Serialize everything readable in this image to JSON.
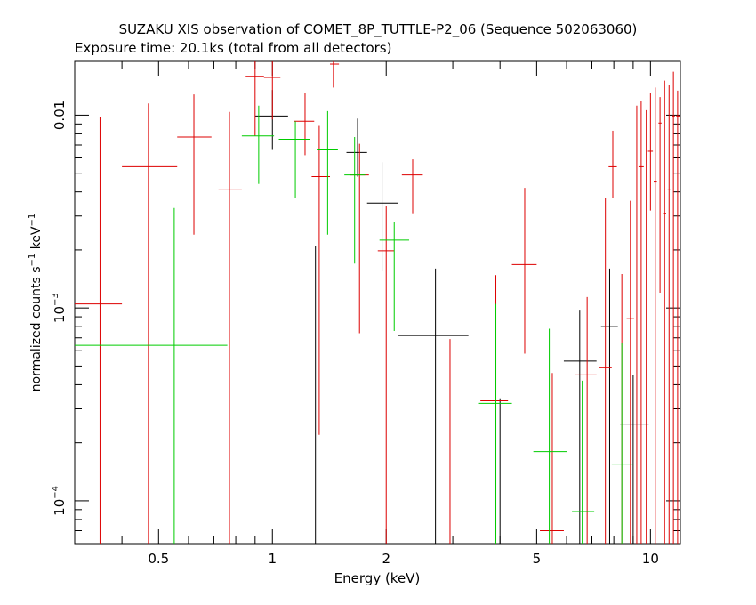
{
  "chart_data": {
    "type": "scatter",
    "title": "SUZAKU XIS observation of COMET_8P_TUTTLE-P2_06 (Sequence 502063060)",
    "subtitle": "Exposure time: 20.1ks (total from all detectors)",
    "xlabel": "Energy (keV)",
    "ylabel_main": "normalized counts s",
    "ylabel_exp1": "−1",
    "ylabel_mid": " keV",
    "ylabel_exp2": "−1",
    "x_scale": "log",
    "y_scale": "log",
    "xlim": [
      0.3,
      12.0
    ],
    "ylim": [
      6e-05,
      0.019
    ],
    "x_tick_labels": [
      {
        "value": 0.5,
        "label": "0.5"
      },
      {
        "value": 1,
        "label": "1"
      },
      {
        "value": 2,
        "label": "2"
      },
      {
        "value": 5,
        "label": "5"
      },
      {
        "value": 10,
        "label": "10"
      }
    ],
    "y_tick_labels": [
      {
        "value": 0.01,
        "base": "0.01",
        "exp": ""
      },
      {
        "value": 0.001,
        "base": "10",
        "exp": "−3"
      },
      {
        "value": 0.0001,
        "base": "10",
        "exp": "−4"
      }
    ],
    "series": [
      {
        "color": "#000000",
        "points": [
          {
            "x": 1.0,
            "xlo": 0.9,
            "xhi": 1.1,
            "y": 0.0099,
            "ylo": 0.0066,
            "yhi": 0.0135
          },
          {
            "x": 1.3,
            "xlo": 1.3,
            "xhi": 1.3,
            "y": 0.0003,
            "ylo": 6e-05,
            "yhi": 0.0021
          },
          {
            "x": 1.68,
            "xlo": 1.57,
            "xhi": 1.78,
            "y": 0.0064,
            "ylo": 0.0048,
            "yhi": 0.0096
          },
          {
            "x": 1.95,
            "xlo": 1.78,
            "xhi": 2.15,
            "y": 0.0035,
            "ylo": 0.00155,
            "yhi": 0.0057
          },
          {
            "x": 2.7,
            "xlo": 2.15,
            "xhi": 3.3,
            "y": 0.00072,
            "ylo": 6e-05,
            "yhi": 0.0016
          },
          {
            "x": 4.0,
            "xlo": 4.0,
            "xhi": 4.0,
            "y": 0.0003,
            "ylo": 6e-05,
            "yhi": 0.00034
          },
          {
            "x": 6.5,
            "xlo": 5.9,
            "xhi": 7.2,
            "y": 0.00053,
            "ylo": 6e-05,
            "yhi": 0.00098
          },
          {
            "x": 7.8,
            "xlo": 7.4,
            "xhi": 8.2,
            "y": 0.0008,
            "ylo": 6e-05,
            "yhi": 0.0016
          },
          {
            "x": 9.0,
            "xlo": 8.3,
            "xhi": 9.9,
            "y": 0.00025,
            "ylo": 6e-05,
            "yhi": 0.00045
          }
        ]
      },
      {
        "color": "#dd0000",
        "points": [
          {
            "x": 0.35,
            "xlo": 0.3,
            "xhi": 0.4,
            "y": 0.00105,
            "ylo": 6e-05,
            "yhi": 0.0098
          },
          {
            "x": 0.47,
            "xlo": 0.4,
            "xhi": 0.56,
            "y": 0.0054,
            "ylo": 6e-05,
            "yhi": 0.0115
          },
          {
            "x": 0.62,
            "xlo": 0.56,
            "xhi": 0.69,
            "y": 0.0077,
            "ylo": 0.0024,
            "yhi": 0.0128
          },
          {
            "x": 0.77,
            "xlo": 0.72,
            "xhi": 0.83,
            "y": 0.0041,
            "ylo": 6e-05,
            "yhi": 0.0104
          },
          {
            "x": 0.9,
            "xlo": 0.85,
            "xhi": 0.95,
            "y": 0.0159,
            "ylo": 0.0078,
            "yhi": 0.019
          },
          {
            "x": 1.0,
            "xlo": 0.95,
            "xhi": 1.05,
            "y": 0.0157,
            "ylo": 0.0095,
            "yhi": 0.019
          },
          {
            "x": 1.22,
            "xlo": 1.14,
            "xhi": 1.29,
            "y": 0.0093,
            "ylo": 0.0062,
            "yhi": 0.013
          },
          {
            "x": 1.33,
            "xlo": 1.27,
            "xhi": 1.42,
            "y": 0.0048,
            "ylo": 0.00022,
            "yhi": 0.0088
          },
          {
            "x": 1.45,
            "xlo": 1.42,
            "xhi": 1.5,
            "y": 0.0184,
            "ylo": 0.0139,
            "yhi": 0.019
          },
          {
            "x": 1.7,
            "xlo": 1.6,
            "xhi": 1.8,
            "y": 0.0049,
            "ylo": 0.00074,
            "yhi": 0.0071
          },
          {
            "x": 2.0,
            "xlo": 1.9,
            "xhi": 2.1,
            "y": 0.00198,
            "ylo": 6e-05,
            "yhi": 0.0034
          },
          {
            "x": 2.35,
            "xlo": 2.2,
            "xhi": 2.5,
            "y": 0.0049,
            "ylo": 0.0031,
            "yhi": 0.0059
          },
          {
            "x": 2.95,
            "xlo": 2.95,
            "xhi": 2.95,
            "y": 0.0006,
            "ylo": 6e-05,
            "yhi": 0.00069
          },
          {
            "x": 3.9,
            "xlo": 3.55,
            "xhi": 4.2,
            "y": 0.00033,
            "ylo": 6e-05,
            "yhi": 0.00148
          },
          {
            "x": 4.65,
            "xlo": 4.3,
            "xhi": 5.0,
            "y": 0.00168,
            "ylo": 0.00058,
            "yhi": 0.0042
          },
          {
            "x": 5.5,
            "xlo": 5.1,
            "xhi": 5.9,
            "y": 7e-05,
            "ylo": 6e-05,
            "yhi": 0.00046
          },
          {
            "x": 6.8,
            "xlo": 6.3,
            "xhi": 7.2,
            "y": 0.00045,
            "ylo": 6e-05,
            "yhi": 0.00114
          },
          {
            "x": 7.6,
            "xlo": 7.3,
            "xhi": 7.9,
            "y": 0.00049,
            "ylo": 6e-05,
            "yhi": 0.0037
          },
          {
            "x": 7.95,
            "xlo": 7.75,
            "xhi": 8.15,
            "y": 0.0054,
            "ylo": 0.0037,
            "yhi": 0.0083
          },
          {
            "x": 8.4,
            "xlo": 8.4,
            "xhi": 8.4,
            "y": 0.0003,
            "ylo": 6e-05,
            "yhi": 0.0015
          },
          {
            "x": 8.85,
            "xlo": 8.65,
            "xhi": 9.05,
            "y": 0.00088,
            "ylo": 6e-05,
            "yhi": 0.0036
          },
          {
            "x": 9.2,
            "xlo": 9.2,
            "xhi": 9.2,
            "y": 0.0003,
            "ylo": 6e-05,
            "yhi": 0.0112
          },
          {
            "x": 9.45,
            "xlo": 9.3,
            "xhi": 9.6,
            "y": 0.0054,
            "ylo": 6e-05,
            "yhi": 0.0118
          },
          {
            "x": 9.75,
            "xlo": 9.75,
            "xhi": 9.75,
            "y": 0.0003,
            "ylo": 6e-05,
            "yhi": 0.0106
          },
          {
            "x": 10.0,
            "xlo": 9.85,
            "xhi": 10.15,
            "y": 0.0065,
            "ylo": 0.0032,
            "yhi": 0.0131
          },
          {
            "x": 10.3,
            "xlo": 10.2,
            "xhi": 10.4,
            "y": 0.0045,
            "ylo": 6e-05,
            "yhi": 0.0139
          },
          {
            "x": 10.6,
            "xlo": 10.5,
            "xhi": 10.7,
            "y": 0.0091,
            "ylo": 0.0012,
            "yhi": 0.0124
          },
          {
            "x": 10.9,
            "xlo": 10.8,
            "xhi": 11.0,
            "y": 0.0031,
            "ylo": 6e-05,
            "yhi": 0.0151
          },
          {
            "x": 11.2,
            "xlo": 11.1,
            "xhi": 11.3,
            "y": 0.0041,
            "ylo": 6e-05,
            "yhi": 0.0144
          },
          {
            "x": 11.5,
            "xlo": 11.4,
            "xhi": 11.6,
            "y": 0.0099,
            "ylo": 6e-05,
            "yhi": 0.0168
          },
          {
            "x": 11.8,
            "xlo": 11.7,
            "xhi": 12.0,
            "y": 0.0099,
            "ylo": 6e-05,
            "yhi": 0.0134
          }
        ]
      },
      {
        "color": "#00cc00",
        "points": [
          {
            "x": 0.55,
            "xlo": 0.3,
            "xhi": 0.76,
            "y": 0.00064,
            "ylo": 6e-05,
            "yhi": 0.0033
          },
          {
            "x": 0.92,
            "xlo": 0.83,
            "xhi": 1.01,
            "y": 0.0078,
            "ylo": 0.0044,
            "yhi": 0.0112
          },
          {
            "x": 1.15,
            "xlo": 1.04,
            "xhi": 1.26,
            "y": 0.0075,
            "ylo": 0.0037,
            "yhi": 0.0093
          },
          {
            "x": 1.4,
            "xlo": 1.31,
            "xhi": 1.49,
            "y": 0.0066,
            "ylo": 0.0024,
            "yhi": 0.0105
          },
          {
            "x": 1.65,
            "xlo": 1.55,
            "xhi": 1.76,
            "y": 0.0049,
            "ylo": 0.0017,
            "yhi": 0.0077
          },
          {
            "x": 2.1,
            "xlo": 1.92,
            "xhi": 2.3,
            "y": 0.00225,
            "ylo": 0.00076,
            "yhi": 0.0028
          },
          {
            "x": 3.9,
            "xlo": 3.5,
            "xhi": 4.3,
            "y": 0.00032,
            "ylo": 6e-05,
            "yhi": 0.00105
          },
          {
            "x": 5.4,
            "xlo": 4.9,
            "xhi": 6.0,
            "y": 0.00018,
            "ylo": 6e-05,
            "yhi": 0.00078
          },
          {
            "x": 6.6,
            "xlo": 6.2,
            "xhi": 7.1,
            "y": 8.8e-05,
            "ylo": 6e-05,
            "yhi": 0.00042
          },
          {
            "x": 8.4,
            "xlo": 7.9,
            "xhi": 9.0,
            "y": 0.000155,
            "ylo": 6e-05,
            "yhi": 0.00066
          }
        ]
      }
    ]
  }
}
